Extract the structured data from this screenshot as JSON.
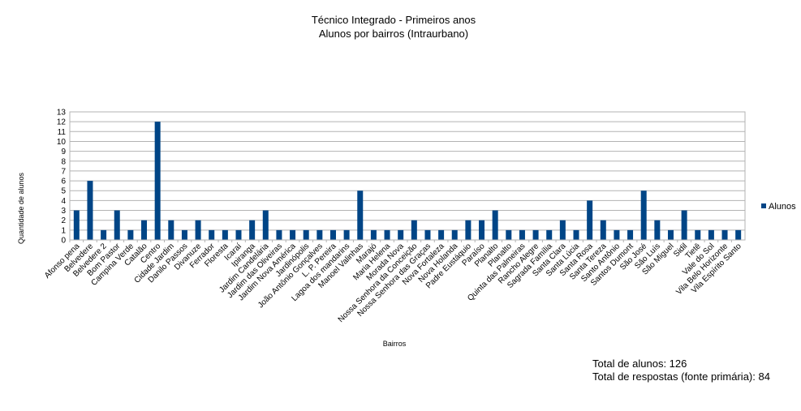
{
  "chart_data": {
    "type": "bar",
    "title": "Técnico Integrado - Primeiros anos",
    "subtitle": "Alunos por bairros (Intraurbano)",
    "xlabel": "Bairros",
    "ylabel": "Quantidade de alunos",
    "ylim": [
      0,
      13
    ],
    "yticks": [
      0,
      1,
      2,
      3,
      4,
      5,
      6,
      7,
      8,
      9,
      10,
      11,
      12,
      13
    ],
    "grid": true,
    "legend_position": "right",
    "bar_color": "#004586",
    "categories": [
      "Afonso pena",
      "Belvedere",
      "Belvedere 2",
      "Bom Pastor",
      "Campina Verde",
      "Catalão",
      "Centro",
      "Cidade Jardim",
      "Danilo Passos",
      "Divanuze",
      "Ferrador",
      "Floresta",
      "Icaraí",
      "Ipiranga",
      "Jardim Candelária",
      "Jardim das Oliveiras",
      "Jardim Nova América",
      "Jardinópolis",
      "João Antônio Gonçalves",
      "L. P. Pereira",
      "Lagoa dos mandarins",
      "Manoel Valinhas",
      "Marajó",
      "Maria Helena",
      "Morada Nova",
      "Nossa Senhora da Conceição",
      "Nossa Senhora das Graças",
      "Nova Fortaleza",
      "Nova Holanda",
      "Padre Eustáquio",
      "Paraíso",
      "Planalto",
      "Planalto",
      "Quinta das Palmeiras",
      "Rancho Alegre",
      "Sagrada Família",
      "Santa Clara",
      "Santa Lúcia",
      "Santa Rosa",
      "Santa Tereza",
      "Santo Antônio",
      "Santos Dumont",
      "São José",
      "São Luís",
      "São Miguel",
      "Sidil",
      "Tietê",
      "Vale do Sol",
      "Vila Belo Horizonte",
      "Vila Espírito Santo"
    ],
    "series": [
      {
        "name": "Alunos",
        "values": [
          3,
          6,
          1,
          3,
          1,
          2,
          12,
          2,
          1,
          2,
          1,
          1,
          1,
          2,
          3,
          1,
          1,
          1,
          1,
          1,
          1,
          5,
          1,
          1,
          1,
          2,
          1,
          1,
          1,
          2,
          2,
          3,
          1,
          1,
          1,
          1,
          2,
          1,
          4,
          2,
          1,
          1,
          5,
          2,
          1,
          3,
          1,
          1,
          1,
          1
        ]
      }
    ]
  },
  "notes": {
    "total_alunos": "Total de alunos: 126",
    "total_respostas": "Total de respostas (fonte primária): 84"
  }
}
